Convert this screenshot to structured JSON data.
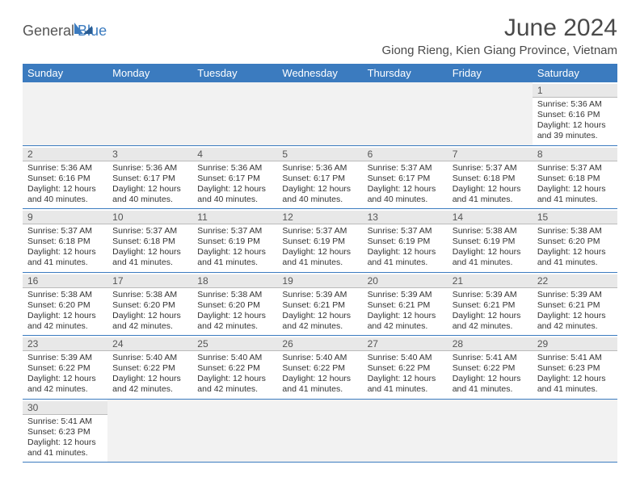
{
  "brand": {
    "part1": "General",
    "part2": "Blue"
  },
  "title": "June 2024",
  "location": "Giong Rieng, Kien Giang Province, Vietnam",
  "colors": {
    "header_bg": "#3b7bbf",
    "text": "#333333",
    "daynum_bg": "#e8e8e8"
  },
  "day_labels": [
    "Sunday",
    "Monday",
    "Tuesday",
    "Wednesday",
    "Thursday",
    "Friday",
    "Saturday"
  ],
  "weeks": [
    [
      null,
      null,
      null,
      null,
      null,
      null,
      {
        "n": "1",
        "sr": "Sunrise: 5:36 AM",
        "ss": "Sunset: 6:16 PM",
        "dl": "Daylight: 12 hours and 39 minutes."
      }
    ],
    [
      {
        "n": "2",
        "sr": "Sunrise: 5:36 AM",
        "ss": "Sunset: 6:16 PM",
        "dl": "Daylight: 12 hours and 40 minutes."
      },
      {
        "n": "3",
        "sr": "Sunrise: 5:36 AM",
        "ss": "Sunset: 6:17 PM",
        "dl": "Daylight: 12 hours and 40 minutes."
      },
      {
        "n": "4",
        "sr": "Sunrise: 5:36 AM",
        "ss": "Sunset: 6:17 PM",
        "dl": "Daylight: 12 hours and 40 minutes."
      },
      {
        "n": "5",
        "sr": "Sunrise: 5:36 AM",
        "ss": "Sunset: 6:17 PM",
        "dl": "Daylight: 12 hours and 40 minutes."
      },
      {
        "n": "6",
        "sr": "Sunrise: 5:37 AM",
        "ss": "Sunset: 6:17 PM",
        "dl": "Daylight: 12 hours and 40 minutes."
      },
      {
        "n": "7",
        "sr": "Sunrise: 5:37 AM",
        "ss": "Sunset: 6:18 PM",
        "dl": "Daylight: 12 hours and 41 minutes."
      },
      {
        "n": "8",
        "sr": "Sunrise: 5:37 AM",
        "ss": "Sunset: 6:18 PM",
        "dl": "Daylight: 12 hours and 41 minutes."
      }
    ],
    [
      {
        "n": "9",
        "sr": "Sunrise: 5:37 AM",
        "ss": "Sunset: 6:18 PM",
        "dl": "Daylight: 12 hours and 41 minutes."
      },
      {
        "n": "10",
        "sr": "Sunrise: 5:37 AM",
        "ss": "Sunset: 6:18 PM",
        "dl": "Daylight: 12 hours and 41 minutes."
      },
      {
        "n": "11",
        "sr": "Sunrise: 5:37 AM",
        "ss": "Sunset: 6:19 PM",
        "dl": "Daylight: 12 hours and 41 minutes."
      },
      {
        "n": "12",
        "sr": "Sunrise: 5:37 AM",
        "ss": "Sunset: 6:19 PM",
        "dl": "Daylight: 12 hours and 41 minutes."
      },
      {
        "n": "13",
        "sr": "Sunrise: 5:37 AM",
        "ss": "Sunset: 6:19 PM",
        "dl": "Daylight: 12 hours and 41 minutes."
      },
      {
        "n": "14",
        "sr": "Sunrise: 5:38 AM",
        "ss": "Sunset: 6:19 PM",
        "dl": "Daylight: 12 hours and 41 minutes."
      },
      {
        "n": "15",
        "sr": "Sunrise: 5:38 AM",
        "ss": "Sunset: 6:20 PM",
        "dl": "Daylight: 12 hours and 41 minutes."
      }
    ],
    [
      {
        "n": "16",
        "sr": "Sunrise: 5:38 AM",
        "ss": "Sunset: 6:20 PM",
        "dl": "Daylight: 12 hours and 42 minutes."
      },
      {
        "n": "17",
        "sr": "Sunrise: 5:38 AM",
        "ss": "Sunset: 6:20 PM",
        "dl": "Daylight: 12 hours and 42 minutes."
      },
      {
        "n": "18",
        "sr": "Sunrise: 5:38 AM",
        "ss": "Sunset: 6:20 PM",
        "dl": "Daylight: 12 hours and 42 minutes."
      },
      {
        "n": "19",
        "sr": "Sunrise: 5:39 AM",
        "ss": "Sunset: 6:21 PM",
        "dl": "Daylight: 12 hours and 42 minutes."
      },
      {
        "n": "20",
        "sr": "Sunrise: 5:39 AM",
        "ss": "Sunset: 6:21 PM",
        "dl": "Daylight: 12 hours and 42 minutes."
      },
      {
        "n": "21",
        "sr": "Sunrise: 5:39 AM",
        "ss": "Sunset: 6:21 PM",
        "dl": "Daylight: 12 hours and 42 minutes."
      },
      {
        "n": "22",
        "sr": "Sunrise: 5:39 AM",
        "ss": "Sunset: 6:21 PM",
        "dl": "Daylight: 12 hours and 42 minutes."
      }
    ],
    [
      {
        "n": "23",
        "sr": "Sunrise: 5:39 AM",
        "ss": "Sunset: 6:22 PM",
        "dl": "Daylight: 12 hours and 42 minutes."
      },
      {
        "n": "24",
        "sr": "Sunrise: 5:40 AM",
        "ss": "Sunset: 6:22 PM",
        "dl": "Daylight: 12 hours and 42 minutes."
      },
      {
        "n": "25",
        "sr": "Sunrise: 5:40 AM",
        "ss": "Sunset: 6:22 PM",
        "dl": "Daylight: 12 hours and 42 minutes."
      },
      {
        "n": "26",
        "sr": "Sunrise: 5:40 AM",
        "ss": "Sunset: 6:22 PM",
        "dl": "Daylight: 12 hours and 41 minutes."
      },
      {
        "n": "27",
        "sr": "Sunrise: 5:40 AM",
        "ss": "Sunset: 6:22 PM",
        "dl": "Daylight: 12 hours and 41 minutes."
      },
      {
        "n": "28",
        "sr": "Sunrise: 5:41 AM",
        "ss": "Sunset: 6:22 PM",
        "dl": "Daylight: 12 hours and 41 minutes."
      },
      {
        "n": "29",
        "sr": "Sunrise: 5:41 AM",
        "ss": "Sunset: 6:23 PM",
        "dl": "Daylight: 12 hours and 41 minutes."
      }
    ],
    [
      {
        "n": "30",
        "sr": "Sunrise: 5:41 AM",
        "ss": "Sunset: 6:23 PM",
        "dl": "Daylight: 12 hours and 41 minutes."
      },
      null,
      null,
      null,
      null,
      null,
      null
    ]
  ]
}
